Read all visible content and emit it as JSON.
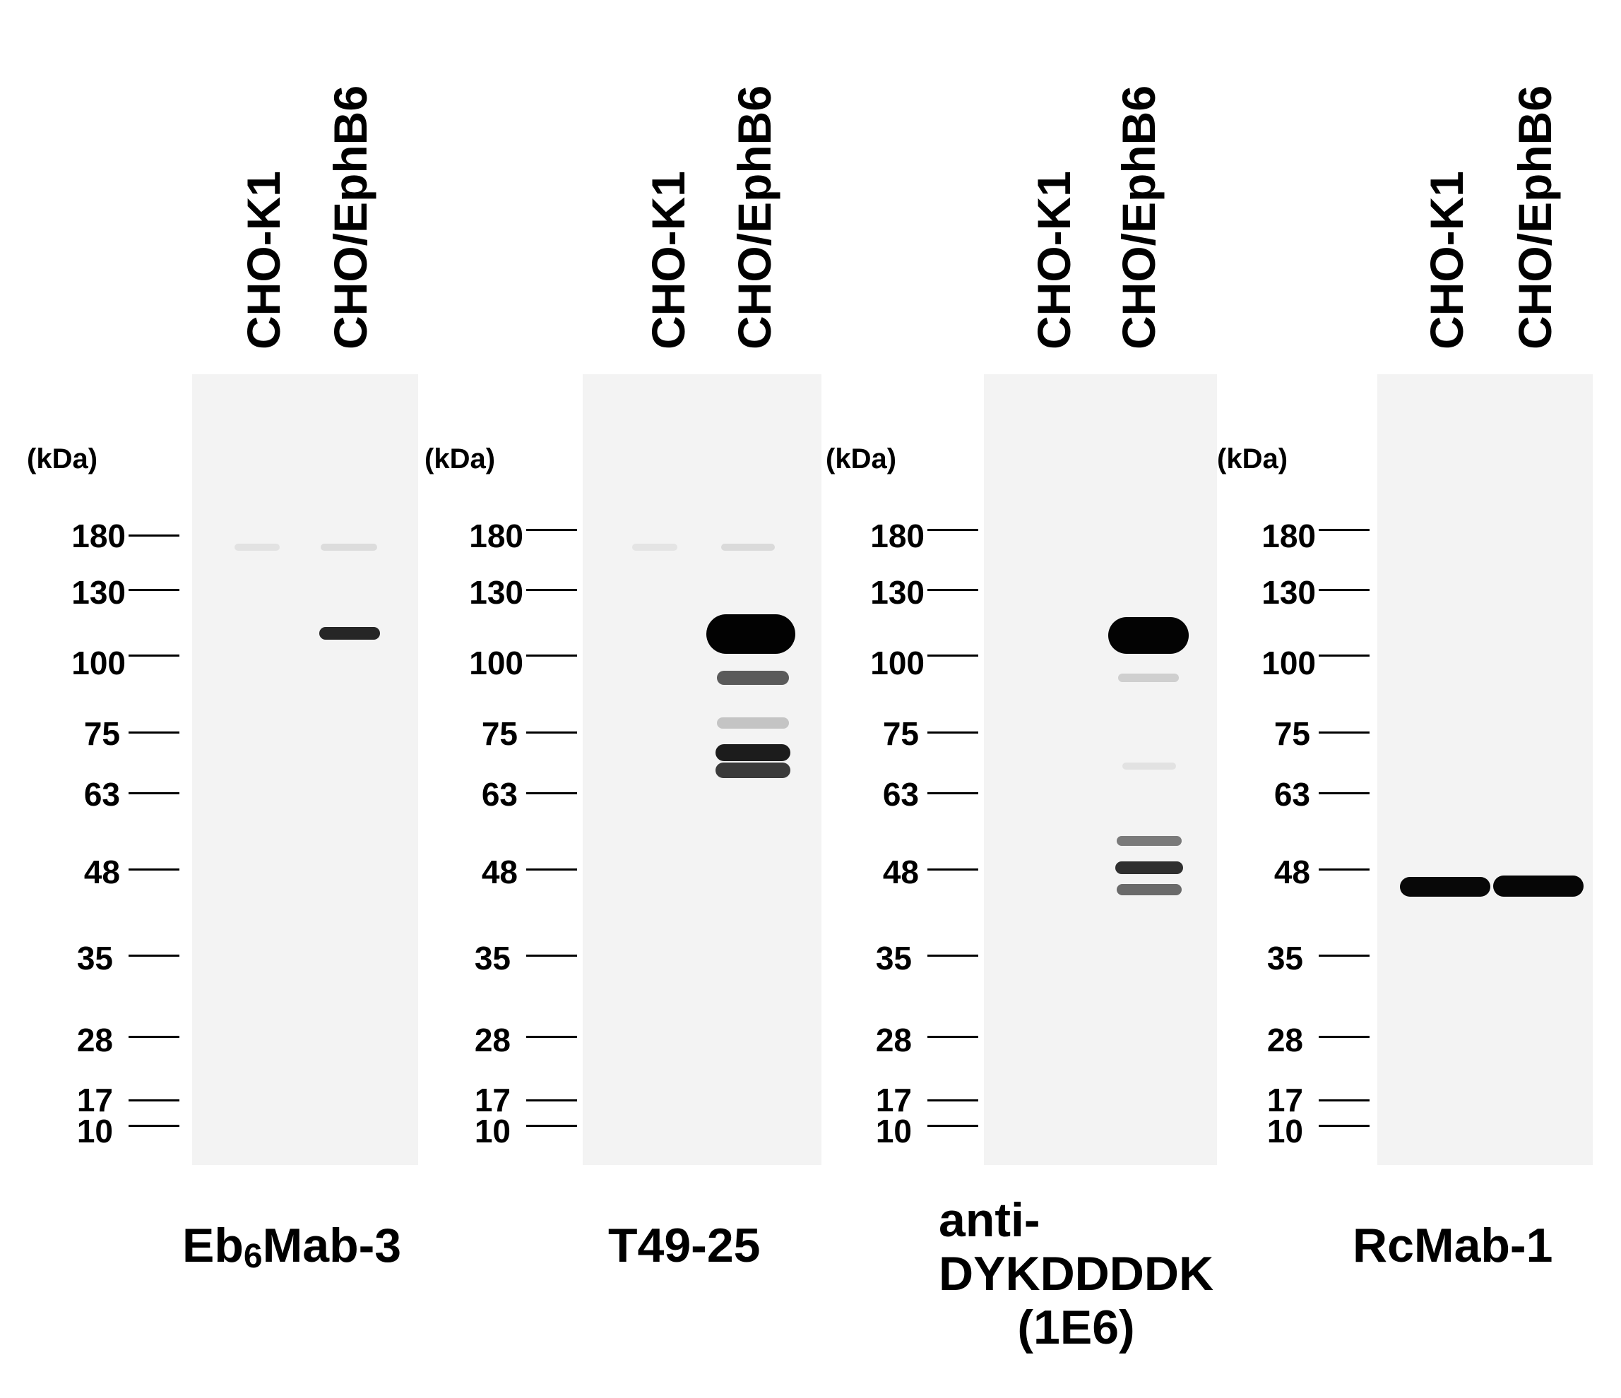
{
  "lane_labels": [
    "CHO-K1",
    "CHO/EphB6"
  ],
  "kda_label": "(kDa)",
  "markers": [
    "180",
    "130",
    "100",
    "75",
    "63",
    "48",
    "35",
    "28",
    "17",
    "10"
  ],
  "panels": [
    {
      "antibody_main": "Eb",
      "antibody_sub": "6",
      "antibody_rest": "Mab-3"
    },
    {
      "antibody_main": "T49-25",
      "antibody_sub": "",
      "antibody_rest": ""
    },
    {
      "antibody_main": "anti-",
      "antibody_sub": "",
      "antibody_rest": "",
      "antibody_line2": "DYKDDDDK",
      "antibody_line3": "(1E6)"
    },
    {
      "antibody_main": "RcMab-1",
      "antibody_sub": "",
      "antibody_rest": ""
    }
  ]
}
